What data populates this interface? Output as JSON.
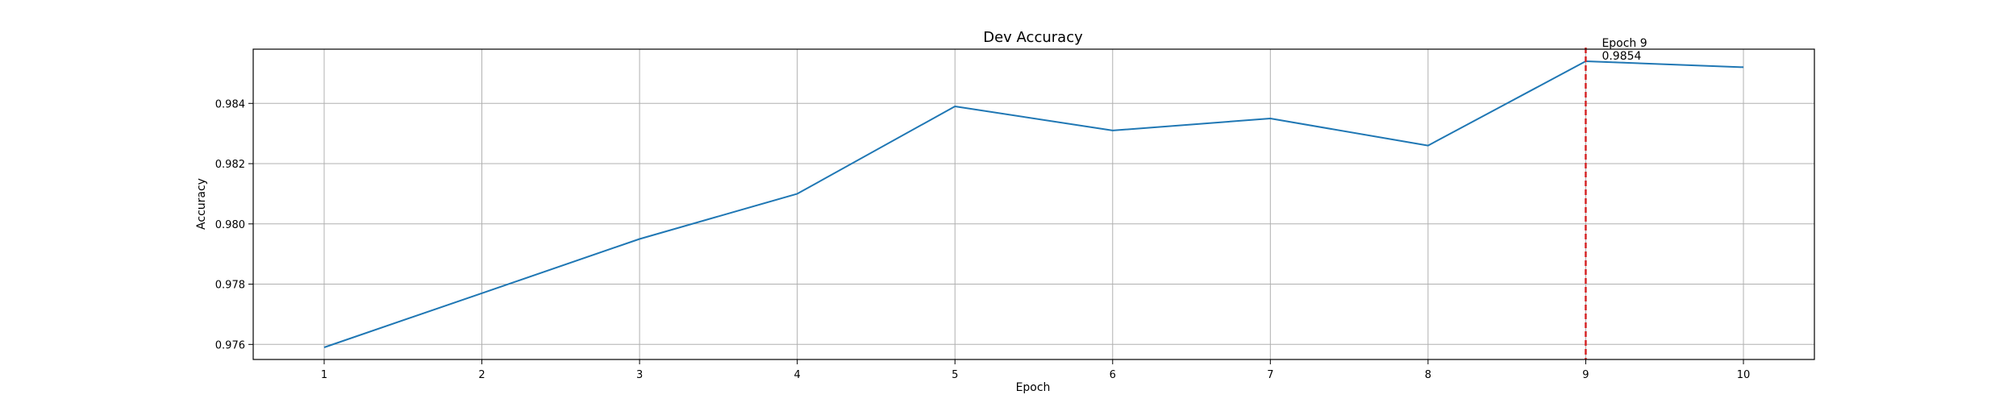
{
  "chart_data": {
    "type": "line",
    "title": "Dev Accuracy",
    "xlabel": "Epoch",
    "ylabel": "Accuracy",
    "x": [
      1,
      2,
      3,
      4,
      5,
      6,
      7,
      8,
      9,
      10
    ],
    "xticks": [
      "1",
      "2",
      "3",
      "4",
      "5",
      "6",
      "7",
      "8",
      "9",
      "10"
    ],
    "xlim": [
      0.55,
      10.45
    ],
    "ylim": [
      0.9755,
      0.9858
    ],
    "yticks": [
      "0.976",
      "0.978",
      "0.980",
      "0.982",
      "0.984"
    ],
    "series": [
      {
        "values": [
          0.9759,
          0.9777,
          0.9795,
          0.981,
          0.9839,
          0.9831,
          0.9835,
          0.9826,
          0.9854,
          0.9852
        ],
        "color": "#1f77b4"
      }
    ],
    "grid": true,
    "annotation": {
      "x": 9,
      "line_color": "#d62728",
      "line_style": "dashed",
      "line1": "Epoch 9",
      "line2": "0.9854"
    }
  }
}
